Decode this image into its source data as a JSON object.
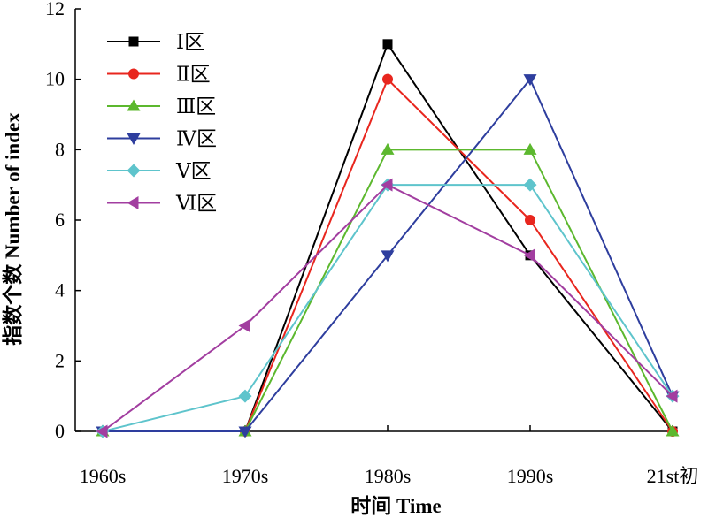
{
  "chart_data": {
    "type": "line",
    "xlabel": "时间 Time",
    "ylabel": "指数个数 Number of index",
    "categories": [
      "1960s",
      "1970s",
      "1980s",
      "1990s",
      "21st初"
    ],
    "ylim": [
      0,
      12
    ],
    "yticks": [
      0,
      2,
      4,
      6,
      8,
      10,
      12
    ],
    "legend_position": "top-left",
    "series": [
      {
        "name": "Ⅰ区",
        "color": "#000000",
        "marker": "square",
        "values": [
          0,
          0,
          11,
          5,
          0
        ]
      },
      {
        "name": "Ⅱ区",
        "color": "#e8261e",
        "marker": "circle",
        "values": [
          0,
          0,
          10,
          6,
          0
        ]
      },
      {
        "name": "Ⅲ区",
        "color": "#5cb82e",
        "marker": "triangle-up",
        "values": [
          0,
          0,
          8,
          8,
          0
        ]
      },
      {
        "name": "Ⅳ区",
        "color": "#2e3e9e",
        "marker": "triangle-down",
        "values": [
          0,
          0,
          5,
          10,
          1
        ]
      },
      {
        "name": "Ⅴ区",
        "color": "#5ec4cc",
        "marker": "diamond",
        "values": [
          0,
          1,
          7,
          7,
          1
        ]
      },
      {
        "name": "Ⅵ区",
        "color": "#a23ea0",
        "marker": "triangle-left",
        "values": [
          0,
          3,
          7,
          5,
          1
        ]
      }
    ]
  }
}
